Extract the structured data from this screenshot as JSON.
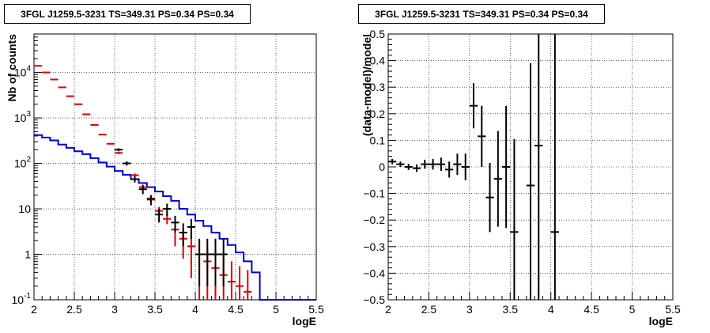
{
  "chart_data": [
    {
      "type": "scatter",
      "title": "3FGL J1259.5-3231 TS=349.31 PS=0.34 PS=0.34",
      "xlabel": "logE",
      "ylabel": "Nb of counts",
      "xlim": [
        2,
        5.5
      ],
      "ylim": [
        0.1,
        70000
      ],
      "y_scale": "log",
      "grid": true,
      "x_ticks": [
        "2",
        "2.5",
        "3",
        "3.5",
        "4",
        "4.5",
        "5",
        "5.5"
      ],
      "y_ticks": [
        "10^-1",
        "1",
        "10",
        "10^2",
        "10^3",
        "10^4"
      ],
      "bin_edges": [
        2.0,
        2.1,
        2.2,
        2.3,
        2.4,
        2.5,
        2.6,
        2.7,
        2.8,
        2.9,
        3.0,
        3.1,
        3.2,
        3.3,
        3.4,
        3.5,
        3.6,
        3.7,
        3.8,
        3.9,
        4.0,
        4.1,
        4.2,
        4.3,
        4.4,
        4.5,
        4.6,
        4.7,
        4.8,
        4.9,
        5.0,
        5.1,
        5.2,
        5.3,
        5.4,
        5.5
      ],
      "series": [
        {
          "color": "#0000dd",
          "style": "step",
          "values": [
            420,
            370,
            320,
            260,
            220,
            185,
            160,
            130,
            105,
            85,
            68,
            56,
            45,
            37,
            30,
            24,
            19,
            15,
            10,
            7.5,
            5.5,
            4.2,
            3.0,
            2.2,
            1.6,
            1.1,
            0.7,
            0.4,
            0.1,
            0.1,
            0.1,
            0.1,
            0.1,
            0.1,
            0.1
          ]
        },
        {
          "color": "#dd0000",
          "style": "errorbar",
          "x": [
            2.05,
            2.15,
            2.25,
            2.35,
            2.45,
            2.55,
            2.65,
            2.75,
            2.85,
            2.95,
            3.05,
            3.15,
            3.25,
            3.35,
            3.45,
            3.55,
            3.65,
            3.75,
            3.85,
            3.95,
            4.05,
            4.15,
            4.25,
            4.35,
            4.45,
            4.55,
            4.65
          ],
          "y": [
            14000,
            10000,
            7000,
            4700,
            3000,
            2000,
            1200,
            700,
            430,
            270,
            170,
            100,
            55,
            30,
            17,
            9,
            6,
            3.5,
            2.2,
            1.5,
            1.0,
            0.7,
            0.5,
            0.35,
            0.25,
            0.2,
            0.15
          ],
          "y_low": [
            13900,
            9900,
            6920,
            4640,
            2950,
            1960,
            1170,
            680,
            420,
            260,
            160,
            92,
            50,
            26,
            14,
            7,
            4.6,
            1.5,
            0.8,
            0.3,
            0.1,
            0.1,
            0.1,
            0.1,
            0.1,
            0.1,
            0.1
          ],
          "y_high": [
            14100,
            10100,
            7080,
            4760,
            3050,
            2040,
            1230,
            720,
            440,
            280,
            180,
            108,
            60,
            34,
            20,
            11,
            7.5,
            5.5,
            3.5,
            2.6,
            2.0,
            1.5,
            1.2,
            0.9,
            0.7,
            0.55,
            0.45
          ]
        },
        {
          "color": "#000000",
          "style": "errorbar",
          "x": [
            3.05,
            3.15,
            3.25,
            3.35,
            3.45,
            3.55,
            3.65,
            3.75,
            3.85,
            3.95,
            4.05,
            4.15,
            4.25,
            4.35
          ],
          "y": [
            200,
            100,
            45,
            27,
            16,
            7.5,
            10,
            5,
            3,
            4,
            1,
            1,
            1,
            1
          ],
          "y_low": [
            185,
            90,
            38,
            21,
            12,
            5,
            7,
            3,
            1.5,
            2.2,
            0.2,
            0.2,
            0.2,
            0.2
          ],
          "y_high": [
            215,
            110,
            52,
            33,
            20,
            10,
            13,
            7,
            4.8,
            6,
            2.2,
            2.2,
            2.2,
            2.2
          ]
        }
      ]
    },
    {
      "type": "scatter",
      "title": "3FGL J1259.5-3231 TS=349.31 PS=0.34 PS=0.34",
      "xlabel": "logE",
      "ylabel": "(data-model)/model",
      "xlim": [
        2,
        5.5
      ],
      "ylim": [
        -0.5,
        0.5
      ],
      "grid": true,
      "x_ticks": [
        "2",
        "2.5",
        "3",
        "3.5",
        "4",
        "4.5",
        "5",
        "5.5"
      ],
      "y_ticks": [
        "-0.5",
        "-0.4",
        "-0.3",
        "-0.2",
        "-0.1",
        "0",
        "0.1",
        "0.2",
        "0.3",
        "0.4",
        "0.5"
      ],
      "series": [
        {
          "color": "#000000",
          "style": "errorbar",
          "x": [
            2.05,
            2.15,
            2.25,
            2.35,
            2.45,
            2.55,
            2.65,
            2.75,
            2.85,
            2.95,
            3.05,
            3.15,
            3.25,
            3.35,
            3.45,
            3.55,
            3.75,
            3.85,
            4.05
          ],
          "y": [
            0.02,
            0.01,
            0.0,
            -0.005,
            0.01,
            0.01,
            0.01,
            -0.01,
            0.01,
            0.0,
            0.23,
            0.115,
            -0.115,
            -0.045,
            0.0,
            -0.245,
            -0.07,
            0.08,
            -0.245
          ],
          "y_err": [
            0.01,
            0.01,
            0.012,
            0.014,
            0.017,
            0.02,
            0.025,
            0.03,
            0.04,
            0.05,
            0.085,
            0.115,
            0.13,
            0.18,
            0.23,
            0.35,
            0.46,
            0.6,
            0.75
          ]
        }
      ]
    }
  ]
}
